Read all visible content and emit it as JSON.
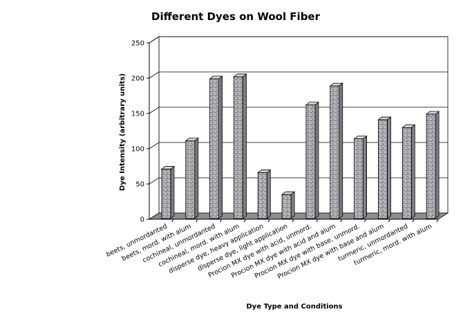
{
  "chart_data": {
    "type": "bar",
    "title": "Different Dyes on Wool Fiber",
    "xlabel": "Dye Type and Conditions",
    "ylabel": "Dye Intensity (arbitrary units)",
    "ylim": [
      0,
      250
    ],
    "yticks": [
      "0",
      "50",
      "100",
      "150",
      "200",
      "250"
    ],
    "grid": true,
    "style": "3d",
    "bar_color": "#a8a8ae",
    "categories": [
      "beets, unmordanted",
      "beets, mord. with alum",
      "cochineal, unmordanted",
      "cochineal, mord. with alum",
      "disperse dye, heavy application",
      "disperse dye, light application",
      "Procion MX dye with acid, unmord.",
      "Procion MX dye with acid and alum",
      "Procion MX dye with base, unmord.",
      "Procion MX dye with base and alum",
      "turmeric, unmordanted",
      "turmeric, mord. with alum"
    ],
    "values": [
      71,
      111,
      199,
      202,
      66,
      35,
      162,
      189,
      114,
      141,
      130,
      149
    ]
  }
}
